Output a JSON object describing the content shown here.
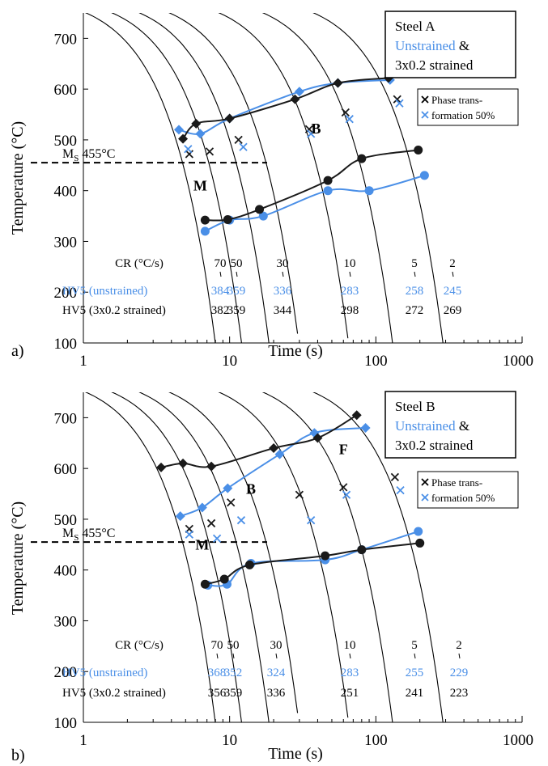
{
  "colors": {
    "black": "#1a1a1a",
    "blue": "#4a8fe7"
  },
  "chart_data": [
    {
      "type": "scatter",
      "panel_label": "a)",
      "legend_title": "Steel A",
      "legend_blue": "Unstrained",
      "legend_amp": " &",
      "legend_black": "3x0.2 strained",
      "cross_legend_1": "Phase trans-",
      "cross_legend_2": "formation 50%",
      "xlabel": "Time (s)",
      "ylabel": "Temperature (°C)",
      "xscale": "log",
      "xlim": [
        1,
        1000
      ],
      "ylim": [
        100,
        750
      ],
      "xticks": [
        "1",
        "10",
        "100",
        "1000"
      ],
      "yticks": [
        "100",
        "200",
        "300",
        "400",
        "500",
        "600",
        "700"
      ],
      "ms_label_main": "M",
      "ms_label_sub": "S",
      "ms_label_rest": " 455°C",
      "ms_temp": 455,
      "region_labels": [
        {
          "text": "M",
          "t": 6.3,
          "T": 400
        },
        {
          "text": "B",
          "t": 39,
          "T": 513
        }
      ],
      "cr_label": "CR (°C/s)",
      "cr_values": [
        "70",
        "50",
        "30",
        "10",
        "5",
        "2"
      ],
      "hv_unstrained_label": "HV5 (unstrained)",
      "hv_unstrained": [
        "384",
        "359",
        "336",
        "283",
        "258",
        "245"
      ],
      "hv_strained_label": "HV5 (3x0.2 strained)",
      "hv_strained": [
        "382",
        "359",
        "344",
        "298",
        "272",
        "269"
      ],
      "cooling_curve_anchors": [
        {
          "t": 4.3,
          "T": 500
        },
        {
          "t": 6.5,
          "T": 500
        },
        {
          "t": 10,
          "T": 500
        },
        {
          "t": 16,
          "T": 500
        },
        {
          "t": 35,
          "T": 500
        },
        {
          "t": 70,
          "T": 500
        },
        {
          "t": 155,
          "T": 500
        }
      ],
      "series": [
        {
          "name": "Unstrained",
          "color": "blue",
          "marker": "diamond",
          "points": [
            [
              4.5,
              520
            ],
            [
              6.3,
              512
            ],
            [
              10,
              542
            ],
            [
              30,
              595
            ],
            [
              55,
              612
            ],
            [
              125,
              618
            ]
          ]
        },
        {
          "name": "Unstrained",
          "color": "blue",
          "marker": "circle",
          "points": [
            [
              6.8,
              320
            ],
            [
              10,
              342
            ],
            [
              17,
              350
            ],
            [
              47,
              400
            ],
            [
              90,
              400
            ],
            [
              215,
              430
            ]
          ]
        },
        {
          "name": "3x0.2 strained",
          "color": "black",
          "marker": "diamond",
          "points": [
            [
              4.8,
              502
            ],
            [
              5.9,
              532
            ],
            [
              10,
              542
            ],
            [
              28,
              580
            ],
            [
              55,
              612
            ],
            [
              122,
              622
            ]
          ]
        },
        {
          "name": "3x0.2 strained",
          "color": "black",
          "marker": "circle",
          "points": [
            [
              6.8,
              342
            ],
            [
              9.7,
              343
            ],
            [
              16,
              363
            ],
            [
              47,
              420
            ],
            [
              80,
              463
            ],
            [
              195,
              480
            ]
          ]
        }
      ],
      "crosses": [
        {
          "color": "black",
          "points": [
            [
              5.3,
              472
            ],
            [
              7.3,
              477
            ],
            [
              11.5,
              500
            ],
            [
              35,
              521
            ],
            [
              62,
              554
            ],
            [
              140,
              580
            ]
          ]
        },
        {
          "color": "blue",
          "points": [
            [
              5.2,
              482
            ],
            [
              12.4,
              486
            ],
            [
              36,
              512
            ],
            [
              66,
              541
            ],
            [
              145,
              572
            ]
          ]
        }
      ]
    },
    {
      "type": "scatter",
      "panel_label": "b)",
      "legend_title": "Steel B",
      "legend_blue": "Unstrained",
      "legend_amp": " &",
      "legend_black": "3x0.2 strained",
      "cross_legend_1": "Phase trans-",
      "cross_legend_2": "formation 50%",
      "xlabel": "Time (s)",
      "ylabel": "Temperature (°C)",
      "xscale": "log",
      "xlim": [
        1,
        1000
      ],
      "ylim": [
        100,
        750
      ],
      "xticks": [
        "1",
        "10",
        "100",
        "1000"
      ],
      "yticks": [
        "100",
        "200",
        "300",
        "400",
        "500",
        "600",
        "700"
      ],
      "ms_label_main": "M",
      "ms_label_sub": "S",
      "ms_label_rest": " 455°C",
      "ms_temp": 455,
      "region_labels": [
        {
          "text": "M",
          "t": 6.5,
          "T": 440
        },
        {
          "text": "B",
          "t": 14,
          "T": 550
        },
        {
          "text": "F",
          "t": 60,
          "T": 628
        }
      ],
      "cr_label": "CR (°C/s)",
      "cr_values": [
        "70",
        "50",
        "30",
        "10",
        "5",
        "2"
      ],
      "hv_unstrained_label": "HV5 (unstrained)",
      "hv_unstrained": [
        "368",
        "352",
        "324",
        "283",
        "255",
        "229"
      ],
      "hv_strained_label": "HV5 (3x0.2 strained)",
      "hv_strained": [
        "356",
        "359",
        "336",
        "251",
        "241",
        "223"
      ],
      "cooling_curve_anchors": [
        {
          "t": 4.3,
          "T": 500
        },
        {
          "t": 6.5,
          "T": 500
        },
        {
          "t": 10,
          "T": 500
        },
        {
          "t": 16,
          "T": 500
        },
        {
          "t": 35,
          "T": 500
        },
        {
          "t": 70,
          "T": 500
        },
        {
          "t": 155,
          "T": 500
        }
      ],
      "series": [
        {
          "name": "Unstrained",
          "color": "blue",
          "marker": "diamond",
          "points": [
            [
              4.6,
              506
            ],
            [
              6.5,
              523
            ],
            [
              9.7,
              561
            ],
            [
              22,
              628
            ],
            [
              38,
              670
            ],
            [
              85,
              680
            ]
          ]
        },
        {
          "name": "Unstrained",
          "color": "blue",
          "marker": "circle",
          "points": [
            [
              7.1,
              370
            ],
            [
              9.6,
              372
            ],
            [
              14,
              413
            ],
            [
              45,
              420
            ],
            [
              80,
              440
            ],
            [
              195,
              476
            ]
          ]
        },
        {
          "name": "3x0.2 strained",
          "color": "black",
          "marker": "diamond",
          "points": [
            [
              3.4,
              602
            ],
            [
              4.8,
              610
            ],
            [
              7.5,
              604
            ],
            [
              20,
              640
            ],
            [
              40,
              660
            ],
            [
              74,
              705
            ]
          ]
        },
        {
          "name": "3x0.2 strained",
          "color": "black",
          "marker": "circle",
          "points": [
            [
              6.8,
              372
            ],
            [
              9.2,
              382
            ],
            [
              13.7,
              410
            ],
            [
              45,
              428
            ],
            [
              80,
              440
            ],
            [
              200,
              453
            ]
          ]
        }
      ],
      "crosses": [
        {
          "color": "black",
          "points": [
            [
              5.3,
              481
            ],
            [
              7.5,
              492
            ],
            [
              10.2,
              533
            ],
            [
              30,
              548
            ],
            [
              60,
              563
            ],
            [
              135,
              583
            ]
          ]
        },
        {
          "color": "blue",
          "points": [
            [
              5.3,
              470
            ],
            [
              8.2,
              462
            ],
            [
              12,
              498
            ],
            [
              36,
              498
            ],
            [
              63,
              548
            ],
            [
              147,
              557
            ]
          ]
        }
      ]
    }
  ]
}
